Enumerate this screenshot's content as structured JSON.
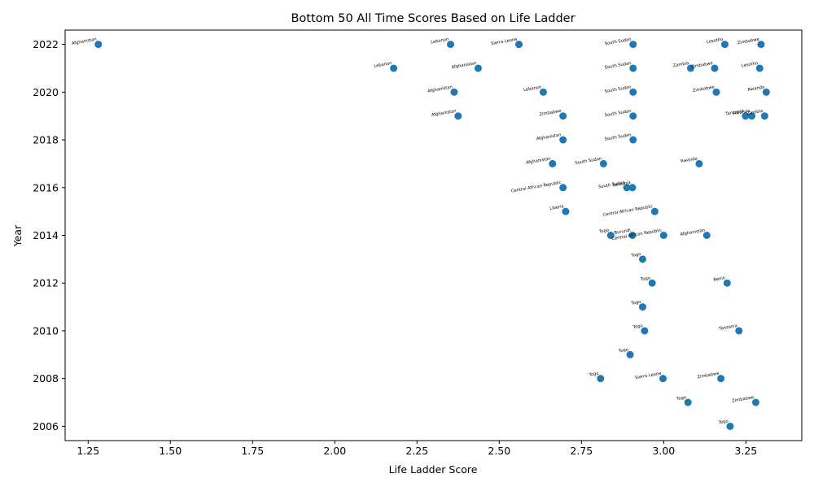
{
  "chart_data": {
    "type": "scatter",
    "title": "Bottom 50 All Time Scores Based on Life Ladder",
    "xlabel": "Life Ladder Score",
    "ylabel": "Year",
    "xlim": [
      1.18,
      3.42
    ],
    "ylim": [
      2005.4,
      2022.6
    ],
    "xticks": [
      "1.25",
      "1.50",
      "1.75",
      "2.00",
      "2.25",
      "2.50",
      "2.75",
      "3.00",
      "3.25"
    ],
    "yticks": [
      "2006",
      "2008",
      "2010",
      "2012",
      "2014",
      "2016",
      "2018",
      "2020",
      "2022"
    ],
    "grid": false,
    "marker_color": "#1f77b4",
    "points": [
      {
        "x": 1.281,
        "y": 2022,
        "label": "Afghanistan"
      },
      {
        "x": 2.352,
        "y": 2022,
        "label": "Lebanon"
      },
      {
        "x": 2.56,
        "y": 2022,
        "label": "Sierra Leone"
      },
      {
        "x": 2.907,
        "y": 2022,
        "label": "South Sudan"
      },
      {
        "x": 3.186,
        "y": 2022,
        "label": "Lesotho"
      },
      {
        "x": 3.296,
        "y": 2022,
        "label": "Zimbabwe"
      },
      {
        "x": 2.179,
        "y": 2021,
        "label": "Lebanon"
      },
      {
        "x": 2.436,
        "y": 2021,
        "label": "Afghanistan"
      },
      {
        "x": 2.907,
        "y": 2021,
        "label": "South Sudan"
      },
      {
        "x": 3.082,
        "y": 2021,
        "label": "Zambia"
      },
      {
        "x": 3.155,
        "y": 2021,
        "label": "Zimbabwe"
      },
      {
        "x": 3.292,
        "y": 2021,
        "label": "Lesotho"
      },
      {
        "x": 2.363,
        "y": 2020,
        "label": "Afghanistan"
      },
      {
        "x": 2.634,
        "y": 2020,
        "label": "Lebanon"
      },
      {
        "x": 2.907,
        "y": 2020,
        "label": "South Sudan"
      },
      {
        "x": 3.16,
        "y": 2020,
        "label": "Zimbabwe"
      },
      {
        "x": 3.312,
        "y": 2020,
        "label": "Rwanda"
      },
      {
        "x": 2.375,
        "y": 2019,
        "label": "Afghanistan"
      },
      {
        "x": 2.694,
        "y": 2019,
        "label": "Zimbabwe"
      },
      {
        "x": 2.907,
        "y": 2019,
        "label": "South Sudan"
      },
      {
        "x": 3.249,
        "y": 2019,
        "label": "Tanzania"
      },
      {
        "x": 3.268,
        "y": 2019,
        "label": "Rwanda"
      },
      {
        "x": 3.307,
        "y": 2019,
        "label": "Zambia"
      },
      {
        "x": 2.694,
        "y": 2018,
        "label": "Afghanistan"
      },
      {
        "x": 2.907,
        "y": 2018,
        "label": "South Sudan"
      },
      {
        "x": 2.662,
        "y": 2017,
        "label": "Afghanistan"
      },
      {
        "x": 2.817,
        "y": 2017,
        "label": "South Sudan"
      },
      {
        "x": 3.108,
        "y": 2017,
        "label": "Rwanda"
      },
      {
        "x": 2.694,
        "y": 2016,
        "label": "Central African Republic"
      },
      {
        "x": 2.888,
        "y": 2016,
        "label": "South Sudan"
      },
      {
        "x": 2.905,
        "y": 2016,
        "label": "Tanzania"
      },
      {
        "x": 2.702,
        "y": 2015,
        "label": "Liberia"
      },
      {
        "x": 2.973,
        "y": 2015,
        "label": "Central African Republic"
      },
      {
        "x": 2.839,
        "y": 2014,
        "label": "Togo"
      },
      {
        "x": 2.905,
        "y": 2014,
        "label": "Burundi"
      },
      {
        "x": 3.0,
        "y": 2014,
        "label": "Central African Republic"
      },
      {
        "x": 3.131,
        "y": 2014,
        "label": "Afghanistan"
      },
      {
        "x": 2.936,
        "y": 2013,
        "label": "Togo"
      },
      {
        "x": 2.965,
        "y": 2012,
        "label": "Togo"
      },
      {
        "x": 3.193,
        "y": 2012,
        "label": "Benin"
      },
      {
        "x": 2.936,
        "y": 2011,
        "label": "Togo"
      },
      {
        "x": 2.942,
        "y": 2010,
        "label": "Togo"
      },
      {
        "x": 3.229,
        "y": 2010,
        "label": "Tanzania"
      },
      {
        "x": 2.898,
        "y": 2009,
        "label": "Togo"
      },
      {
        "x": 2.808,
        "y": 2008,
        "label": "Togo"
      },
      {
        "x": 2.998,
        "y": 2008,
        "label": "Sierra Leone"
      },
      {
        "x": 3.174,
        "y": 2008,
        "label": "Zimbabwe"
      },
      {
        "x": 3.074,
        "y": 2007,
        "label": "Togo"
      },
      {
        "x": 3.28,
        "y": 2007,
        "label": "Zimbabwe"
      },
      {
        "x": 3.202,
        "y": 2006,
        "label": "Togo"
      }
    ]
  }
}
